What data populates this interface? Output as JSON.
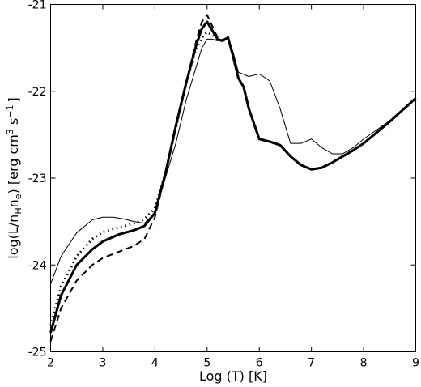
{
  "chart_data": {
    "type": "line",
    "xlabel": "Log (T) [K]",
    "ylabel": {
      "prefix": "log(L/n",
      "sub1": "H",
      "mid": "n",
      "sub2": "e",
      "suffix": ") [erg cm",
      "sup1": "3",
      "s": " s",
      "sup2": "−1",
      "end": "]"
    },
    "xlim": [
      2,
      9
    ],
    "ylim": [
      -25,
      -21
    ],
    "xticks": [
      2,
      3,
      4,
      5,
      6,
      7,
      8,
      9
    ],
    "yticks": [
      -25,
      -24,
      -23,
      -22,
      -21
    ],
    "xtick_labels": [
      "2",
      "3",
      "4",
      "5",
      "6",
      "7",
      "8",
      "9"
    ],
    "ytick_labels": [
      "-25",
      "-24",
      "-23",
      "-22",
      "-21"
    ],
    "grid": false,
    "series": [
      {
        "style": "thin-solid",
        "x": [
          2.0,
          2.2,
          2.5,
          2.8,
          3.0,
          3.2,
          3.4,
          3.6,
          3.8,
          4.0,
          4.2,
          4.4,
          4.6,
          4.8,
          4.9,
          5.0,
          5.1,
          5.2,
          5.3,
          5.4,
          5.5,
          5.6,
          5.8,
          6.0,
          6.2,
          6.4,
          6.6,
          6.8,
          7.0,
          7.2,
          7.4,
          7.6,
          7.8,
          8.0,
          8.5,
          9.0
        ],
        "y": [
          -24.22,
          -23.9,
          -23.63,
          -23.48,
          -23.45,
          -23.45,
          -23.47,
          -23.5,
          -23.52,
          -23.4,
          -23.0,
          -22.6,
          -22.1,
          -21.7,
          -21.5,
          -21.4,
          -21.4,
          -21.42,
          -21.4,
          -21.38,
          -21.55,
          -21.78,
          -21.83,
          -21.8,
          -21.88,
          -22.2,
          -22.6,
          -22.6,
          -22.55,
          -22.65,
          -22.72,
          -22.72,
          -22.65,
          -22.55,
          -22.34,
          -22.08
        ]
      },
      {
        "style": "thick-solid",
        "x": [
          2.0,
          2.2,
          2.5,
          2.8,
          3.0,
          3.3,
          3.6,
          3.8,
          4.0,
          4.2,
          4.4,
          4.6,
          4.8,
          4.9,
          5.0,
          5.1,
          5.2,
          5.3,
          5.4,
          5.5,
          5.6,
          5.7,
          5.8,
          6.0,
          6.2,
          6.4,
          6.6,
          6.8,
          7.0,
          7.2,
          7.4,
          7.6,
          7.8,
          8.0,
          8.5,
          9.0
        ],
        "y": [
          -24.78,
          -24.35,
          -24.0,
          -23.82,
          -23.73,
          -23.65,
          -23.6,
          -23.55,
          -23.4,
          -22.95,
          -22.4,
          -21.9,
          -21.45,
          -21.28,
          -21.2,
          -21.3,
          -21.4,
          -21.42,
          -21.38,
          -21.6,
          -21.85,
          -21.95,
          -22.2,
          -22.55,
          -22.58,
          -22.62,
          -22.75,
          -22.85,
          -22.9,
          -22.88,
          -22.82,
          -22.75,
          -22.68,
          -22.6,
          -22.35,
          -22.08
        ]
      },
      {
        "style": "dashed",
        "x": [
          2.0,
          2.2,
          2.5,
          2.8,
          3.0,
          3.3,
          3.6,
          3.8,
          4.0,
          4.2,
          4.4,
          4.6,
          4.8,
          4.9,
          5.0,
          5.1,
          5.2,
          5.3,
          5.4,
          5.5,
          5.6,
          5.7,
          5.8,
          6.0,
          6.2,
          6.4,
          6.6,
          6.8,
          7.0,
          7.2,
          7.4,
          7.6,
          7.8,
          8.0,
          8.5,
          9.0
        ],
        "y": [
          -24.88,
          -24.5,
          -24.18,
          -24.0,
          -23.92,
          -23.85,
          -23.78,
          -23.7,
          -23.45,
          -22.95,
          -22.4,
          -21.9,
          -21.4,
          -21.2,
          -21.12,
          -21.25,
          -21.38,
          -21.42,
          -21.38,
          -21.6,
          -21.85,
          -21.95,
          -22.2,
          -22.55,
          -22.58,
          -22.62,
          -22.75,
          -22.85,
          -22.9,
          -22.88,
          -22.82,
          -22.75,
          -22.68,
          -22.6,
          -22.35,
          -22.08
        ]
      },
      {
        "style": "dotted",
        "x": [
          2.0,
          2.2,
          2.5,
          2.8,
          3.0,
          3.3,
          3.6,
          3.8,
          4.0,
          4.2,
          4.4,
          4.6,
          4.8,
          4.9,
          5.0,
          5.1,
          5.2,
          5.3,
          5.4,
          5.5,
          5.6,
          5.7,
          5.8,
          6.0,
          6.2,
          6.4,
          6.6,
          6.8,
          7.0,
          7.2,
          7.4,
          7.6,
          7.8,
          8.0,
          8.5,
          9.0
        ],
        "y": [
          -24.7,
          -24.25,
          -23.9,
          -23.7,
          -23.62,
          -23.57,
          -23.52,
          -23.47,
          -23.35,
          -22.95,
          -22.42,
          -21.92,
          -21.5,
          -21.38,
          -21.32,
          -21.35,
          -21.4,
          -21.42,
          -21.38,
          -21.6,
          -21.85,
          -21.95,
          -22.2,
          -22.55,
          -22.58,
          -22.62,
          -22.75,
          -22.85,
          -22.9,
          -22.88,
          -22.82,
          -22.75,
          -22.68,
          -22.6,
          -22.35,
          -22.08
        ]
      }
    ]
  }
}
